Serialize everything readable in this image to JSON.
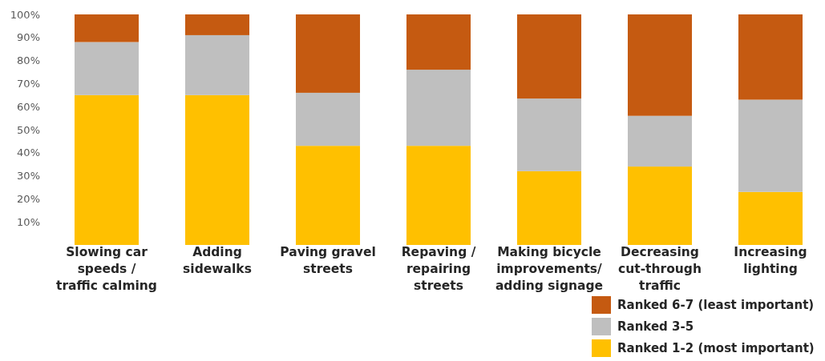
{
  "chart_data": {
    "type": "bar",
    "stacked": true,
    "categories": [
      "Slowing car speeds / traffic calming",
      "Adding sidewalks",
      "Paving gravel streets",
      "Repaving / repairing streets",
      "Making bicycle improvements/ adding signage",
      "Decreasing cut-through traffic",
      "Increasing lighting"
    ],
    "series": [
      {
        "name": "Ranked 1-2 (most important)",
        "color": "#ffc000",
        "values": [
          65,
          65,
          43,
          43,
          32,
          34,
          23
        ]
      },
      {
        "name": "Ranked 3-5",
        "color": "#bfbfbf",
        "values": [
          23,
          26,
          23,
          33,
          31.5,
          22,
          40
        ]
      },
      {
        "name": "Ranked 6-7 (least important)",
        "color": "#c55a11",
        "values": [
          12,
          9,
          34,
          24,
          36.5,
          44,
          37
        ]
      }
    ],
    "ylim": [
      0,
      100
    ],
    "yticks": [
      {
        "value": 10,
        "label": "10%"
      },
      {
        "value": 20,
        "label": "20%"
      },
      {
        "value": 30,
        "label": "30%"
      },
      {
        "value": 40,
        "label": "40%"
      },
      {
        "value": 50,
        "label": "50%"
      },
      {
        "value": 60,
        "label": "60%"
      },
      {
        "value": 70,
        "label": "70%"
      },
      {
        "value": 80,
        "label": "80%"
      },
      {
        "value": 90,
        "label": "90%"
      },
      {
        "value": 100,
        "label": "100%"
      }
    ],
    "legend": "bottom right"
  }
}
